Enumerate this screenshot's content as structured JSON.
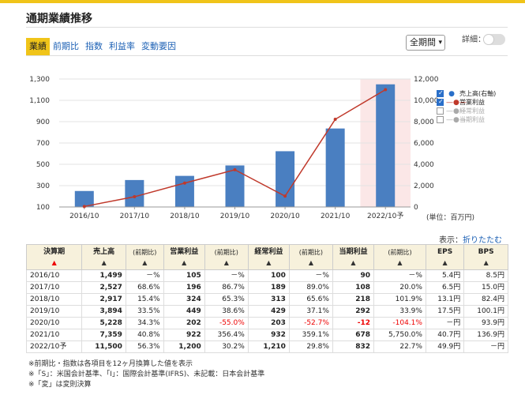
{
  "title": "通期業績推移",
  "tabs": [
    {
      "label": "業績",
      "active": true
    },
    {
      "label": "前期比",
      "active": false
    },
    {
      "label": "指数",
      "active": false
    },
    {
      "label": "利益率",
      "active": false
    },
    {
      "label": "変動要因",
      "active": false
    }
  ],
  "period_select": {
    "value": "全期間"
  },
  "detail_label": "詳細：",
  "detail_toggle": {
    "on": false
  },
  "chart_data": {
    "type": "bar",
    "categories": [
      "2016/10",
      "2017/10",
      "2018/10",
      "2019/10",
      "2020/10",
      "2021/10",
      "2022/10予"
    ],
    "series": [
      {
        "name": "売上高(右軸)",
        "type": "bar",
        "axis": "right",
        "color": "#4a7fc1",
        "values": [
          1499,
          2527,
          2917,
          3894,
          5228,
          7359,
          11500
        ]
      },
      {
        "name": "営業利益",
        "type": "line",
        "axis": "left",
        "color": "#c0392b",
        "values": [
          105,
          196,
          324,
          449,
          202,
          922,
          1200
        ]
      }
    ],
    "left_ticks": [
      "1,300",
      "1,100",
      "900",
      "700",
      "500",
      "300",
      "100"
    ],
    "right_ticks": [
      "12,000",
      "10,000",
      "8,000",
      "6,000",
      "4,000",
      "2,000",
      "0"
    ],
    "ylim_left": [
      100,
      1300
    ],
    "ylim_right": [
      0,
      12000
    ],
    "forecast_highlight": "2022/10予",
    "unit": "(単位：百万円)"
  },
  "legend": [
    {
      "label": "売上高(右軸)",
      "checked": true,
      "symbol": "●",
      "color": "#2a6fc9"
    },
    {
      "label": "営業利益",
      "checked": true,
      "symbol": "—●—",
      "color": "#c0392b"
    },
    {
      "label": "経常利益",
      "checked": false,
      "symbol": "—●—",
      "color": "#aaa"
    },
    {
      "label": "当期利益",
      "checked": false,
      "symbol": "—●—",
      "color": "#aaa"
    }
  ],
  "display_label": "表示：",
  "display_link": "折りたたむ",
  "table": {
    "headers": [
      {
        "label": "決算期",
        "arrow": "▲",
        "red": true
      },
      {
        "label": "売上高",
        "arrow": "▲"
      },
      {
        "label": "(前期比)",
        "arrow": "▲",
        "pct": true
      },
      {
        "label": "営業利益",
        "arrow": "▲"
      },
      {
        "label": "(前期比)",
        "arrow": "▲",
        "pct": true
      },
      {
        "label": "経常利益",
        "arrow": "▲"
      },
      {
        "label": "(前期比)",
        "arrow": "▲",
        "pct": true
      },
      {
        "label": "当期利益",
        "arrow": "▲"
      },
      {
        "label": "(前期比)",
        "arrow": "▲",
        "pct": true
      },
      {
        "label": "EPS",
        "arrow": "▲"
      },
      {
        "label": "BPS",
        "arrow": "▲"
      }
    ],
    "rows": [
      [
        "2016/10",
        "1,499",
        "－%",
        "105",
        "－%",
        "100",
        "－%",
        "90",
        "－%",
        "5.4円",
        "8.5円"
      ],
      [
        "2017/10",
        "2,527",
        "68.6%",
        "196",
        "86.7%",
        "189",
        "89.0%",
        "108",
        "20.0%",
        "6.5円",
        "15.0円"
      ],
      [
        "2018/10",
        "2,917",
        "15.4%",
        "324",
        "65.3%",
        "313",
        "65.6%",
        "218",
        "101.9%",
        "13.1円",
        "82.4円"
      ],
      [
        "2019/10",
        "3,894",
        "33.5%",
        "449",
        "38.6%",
        "429",
        "37.1%",
        "292",
        "33.9%",
        "17.5円",
        "100.1円"
      ],
      [
        "2020/10",
        "5,228",
        "34.3%",
        "202",
        "-55.0%",
        "203",
        "-52.7%",
        "-12",
        "-104.1%",
        "－円",
        "93.9円"
      ],
      [
        "2021/10",
        "7,359",
        "40.8%",
        "922",
        "356.4%",
        "932",
        "359.1%",
        "678",
        "5,750.0%",
        "40.7円",
        "136.9円"
      ],
      [
        "2022/10予",
        "11,500",
        "56.3%",
        "1,200",
        "30.2%",
        "1,210",
        "29.8%",
        "832",
        "22.7%",
        "49.9円",
        "－円"
      ]
    ]
  },
  "notes": [
    "※前期比・指数は各項目を12ヶ月換算した値を表示",
    "※「S」：米国会計基準、「I」：国際会計基準(IFRS)、未記載：日本会計基準",
    "※「変」は変則決算"
  ]
}
